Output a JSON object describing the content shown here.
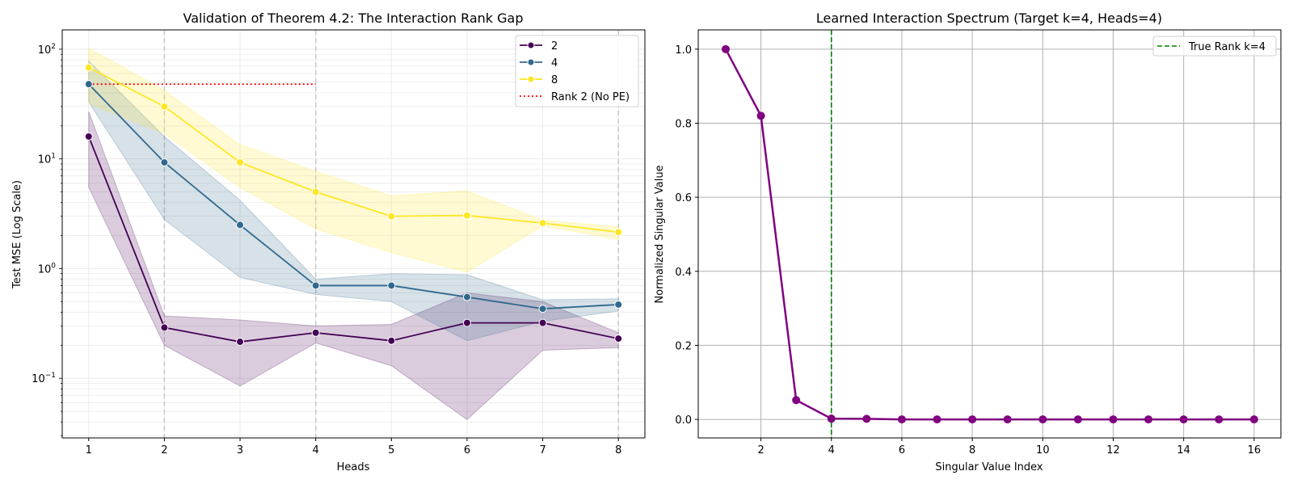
{
  "chart_data": [
    {
      "type": "line",
      "title": "Validation of Theorem 4.2: The Interaction Rank Gap",
      "xlabel": "Heads",
      "ylabel": "Test MSE (Log Scale)",
      "yscale": "log",
      "xlim": [
        0.65,
        8.35
      ],
      "ylim": [
        0.0286,
        150
      ],
      "grid": true,
      "legend": "top-right",
      "x": [
        1,
        2,
        3,
        4,
        5,
        6,
        7,
        8
      ],
      "xticks": [
        "1",
        "2",
        "3",
        "4",
        "5",
        "6",
        "7",
        "8"
      ],
      "yticks": [
        {
          "value": 0.1,
          "base": "10",
          "exp": "−1"
        },
        {
          "value": 1,
          "base": "10",
          "exp": "0"
        },
        {
          "value": 10,
          "base": "10",
          "exp": "1"
        },
        {
          "value": 100,
          "base": "10",
          "exp": "2"
        }
      ],
      "vlines": {
        "x": [
          2,
          4,
          8
        ],
        "color": "#c8c8c8",
        "style": "dashed"
      },
      "series": [
        {
          "name": "2",
          "color": "#440154",
          "values": [
            16,
            0.29,
            0.215,
            0.26,
            0.22,
            0.32,
            0.32,
            0.23
          ],
          "ci_low": [
            5.5,
            0.2,
            0.085,
            0.21,
            0.13,
            0.042,
            0.18,
            0.19
          ],
          "ci_high": [
            27,
            0.37,
            0.34,
            0.3,
            0.31,
            0.6,
            0.5,
            0.26
          ]
        },
        {
          "name": "4",
          "color": "#31688e",
          "values": [
            48,
            9.3,
            2.5,
            0.7,
            0.7,
            0.55,
            0.43,
            0.47
          ],
          "ci_low": [
            33,
            2.8,
            0.83,
            0.58,
            0.5,
            0.22,
            0.33,
            0.41
          ],
          "ci_high": [
            78,
            16,
            4.2,
            0.8,
            0.9,
            0.88,
            0.52,
            0.53
          ]
        },
        {
          "name": "8",
          "color": "#fde725",
          "values": [
            68,
            30,
            9.3,
            5,
            3,
            3.05,
            2.6,
            2.15
          ],
          "ci_low": [
            32,
            17,
            5.5,
            2.3,
            1.4,
            0.93,
            2.45,
            1.85
          ],
          "ci_high": [
            102,
            42,
            13.5,
            7.7,
            4.6,
            5.1,
            2.75,
            2.4
          ]
        }
      ],
      "reference_line": {
        "name": "Rank 2 (No PE)",
        "color": "#ff0000",
        "style": "dotted",
        "y": 48,
        "x_range": [
          1,
          4
        ]
      }
    },
    {
      "type": "line",
      "title": "Learned Interaction Spectrum (Target k=4, Heads=4)",
      "xlabel": "Singular Value Index",
      "ylabel": "Normalized Singular Value",
      "xlim": [
        0.22,
        16.76
      ],
      "ylim": [
        -0.05,
        1.052
      ],
      "grid": true,
      "legend": "top-right",
      "xticks": [
        "2",
        "4",
        "6",
        "8",
        "10",
        "12",
        "14",
        "16"
      ],
      "yticks": [
        "0.0",
        "0.2",
        "0.4",
        "0.6",
        "0.8",
        "1.0"
      ],
      "x": [
        1,
        2,
        3,
        4,
        5,
        6,
        7,
        8,
        9,
        10,
        11,
        12,
        13,
        14,
        15,
        16
      ],
      "series": [
        {
          "color": "#800080",
          "values": [
            1.0,
            0.82,
            0.052,
            0.002,
            0.0015,
            0.0,
            0.0,
            0.0,
            0.0,
            0.0,
            0.0,
            0.0,
            0.0,
            0.0,
            0.0,
            0.0
          ]
        }
      ],
      "reference_line": {
        "name": "True Rank k=4",
        "color": "#008000",
        "style": "dashed",
        "x": 4
      }
    }
  ]
}
